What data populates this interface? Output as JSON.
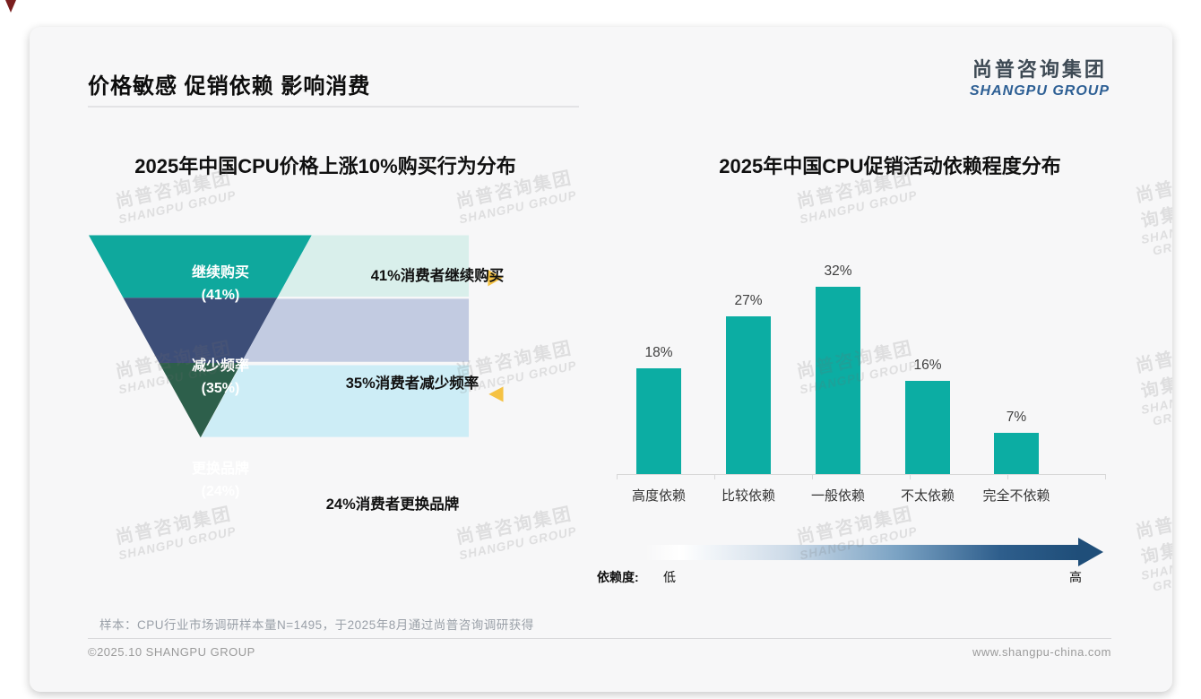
{
  "page": {
    "main_title": "价格敏感 促销依赖 影响消费",
    "logo_cn": "尚普咨询集团",
    "logo_en": "SHANGPU GROUP",
    "watermark_cn": "尚普咨询集团",
    "watermark_en": "SHANGPU GROUP",
    "sample_note": "样本：CPU行业市场调研样本量N=1495，于2025年8月通过尚普咨询调研获得",
    "footer_left": "©2025.10 SHANGPU GROUP",
    "footer_right": "www.shangpu-china.com"
  },
  "colors": {
    "funnel_teal": "#0FA89D",
    "funnel_navy": "#3D4E78",
    "funnel_green": "#2D5F4B",
    "block_mint": "#D9EFEB",
    "block_lavender": "#C2CBE1",
    "block_cyan": "#CDEDF6",
    "arrow_yellow": "#F5C243",
    "bar_teal": "#0CADA3",
    "gradient_end": "#1F4E79",
    "corner_red": "#7A1E1E"
  },
  "chart_data": [
    {
      "type": "funnel",
      "title": "2025年中国CPU价格上涨10%购买行为分布",
      "segments": [
        {
          "label": "继续购买",
          "pct_label": "(41%)",
          "value": 41,
          "annotation": "41%消费者继续购买"
        },
        {
          "label": "减少频率",
          "pct_label": "(35%)",
          "value": 35,
          "annotation": "35%消费者减少频率"
        },
        {
          "label": "更换品牌",
          "pct_label": "(24%)",
          "value": 24,
          "annotation": "24%消费者更换品牌"
        }
      ]
    },
    {
      "type": "bar",
      "title": "2025年中国CPU促销活动依赖程度分布",
      "categories": [
        "高度依赖",
        "比较依赖",
        "一般依赖",
        "不太依赖",
        "完全不依赖"
      ],
      "values": [
        18,
        27,
        32,
        16,
        7
      ],
      "value_labels": [
        "18%",
        "27%",
        "32%",
        "16%",
        "7%"
      ],
      "ylim": [
        0,
        35
      ],
      "grid": false,
      "legend": "none",
      "axis_annotation": {
        "label": "依赖度:",
        "low": "低",
        "high": "高"
      }
    }
  ]
}
